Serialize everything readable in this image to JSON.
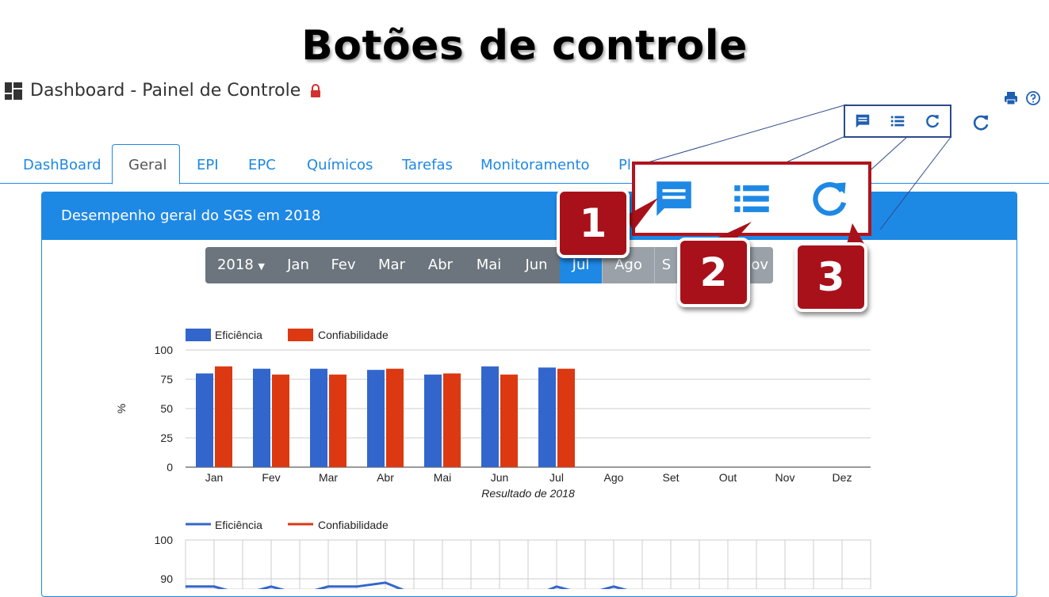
{
  "slide": {
    "title": "Botões de controle"
  },
  "app": {
    "title": "Dashboard - Painel de Controle"
  },
  "tabs": [
    {
      "label": "DashBoard",
      "active": false
    },
    {
      "label": "Geral",
      "active": true
    },
    {
      "label": "EPI",
      "active": false
    },
    {
      "label": "EPC",
      "active": false
    },
    {
      "label": "Químicos",
      "active": false
    },
    {
      "label": "Tarefas",
      "active": false
    },
    {
      "label": "Monitoramento",
      "active": false
    },
    {
      "label": "Pl",
      "active": false
    }
  ],
  "card": {
    "header": "Desempenho geral do SGS em 2018"
  },
  "month_bar": {
    "year_label": "2018",
    "months": [
      "Jan",
      "Fev",
      "Mar",
      "Abr",
      "Mai",
      "Jun",
      "Jul",
      "Ago",
      "S",
      "Nov"
    ],
    "current": "Jul"
  },
  "callouts": {
    "badge1": "1",
    "badge2": "2",
    "badge3": "3"
  },
  "colors": {
    "primary": "#1e88e5",
    "eficiencia": "#3366cc",
    "confiabilidade": "#dc3912",
    "callout": "#a8111a"
  },
  "chart_data": [
    {
      "type": "bar",
      "categories": [
        "Jan",
        "Fev",
        "Mar",
        "Abr",
        "Mai",
        "Jun",
        "Jul",
        "Ago",
        "Set",
        "Out",
        "Nov",
        "Dez"
      ],
      "series": [
        {
          "name": "Eficiência",
          "values": [
            80,
            84,
            84,
            83,
            79,
            86,
            85,
            null,
            null,
            null,
            null,
            null
          ]
        },
        {
          "name": "Confiabilidade",
          "values": [
            86,
            79,
            79,
            84,
            80,
            79,
            84,
            null,
            null,
            null,
            null,
            null
          ]
        }
      ],
      "ylabel": "%",
      "xlabel": "Resultado de 2018",
      "yticks": [
        0,
        25,
        50,
        75,
        100
      ],
      "ylim": [
        0,
        100
      ],
      "legend": "top-left",
      "grid": true
    },
    {
      "type": "line",
      "series": [
        {
          "name": "Eficiência",
          "values": [
            88,
            88,
            86,
            88,
            86,
            88,
            88,
            89,
            86,
            85,
            85,
            85,
            85,
            88,
            86,
            88,
            86,
            85,
            85,
            85
          ]
        },
        {
          "name": "Confiabilidade",
          "values": []
        }
      ],
      "yticks": [
        90,
        100
      ],
      "legend": "top-left",
      "grid": true
    }
  ]
}
